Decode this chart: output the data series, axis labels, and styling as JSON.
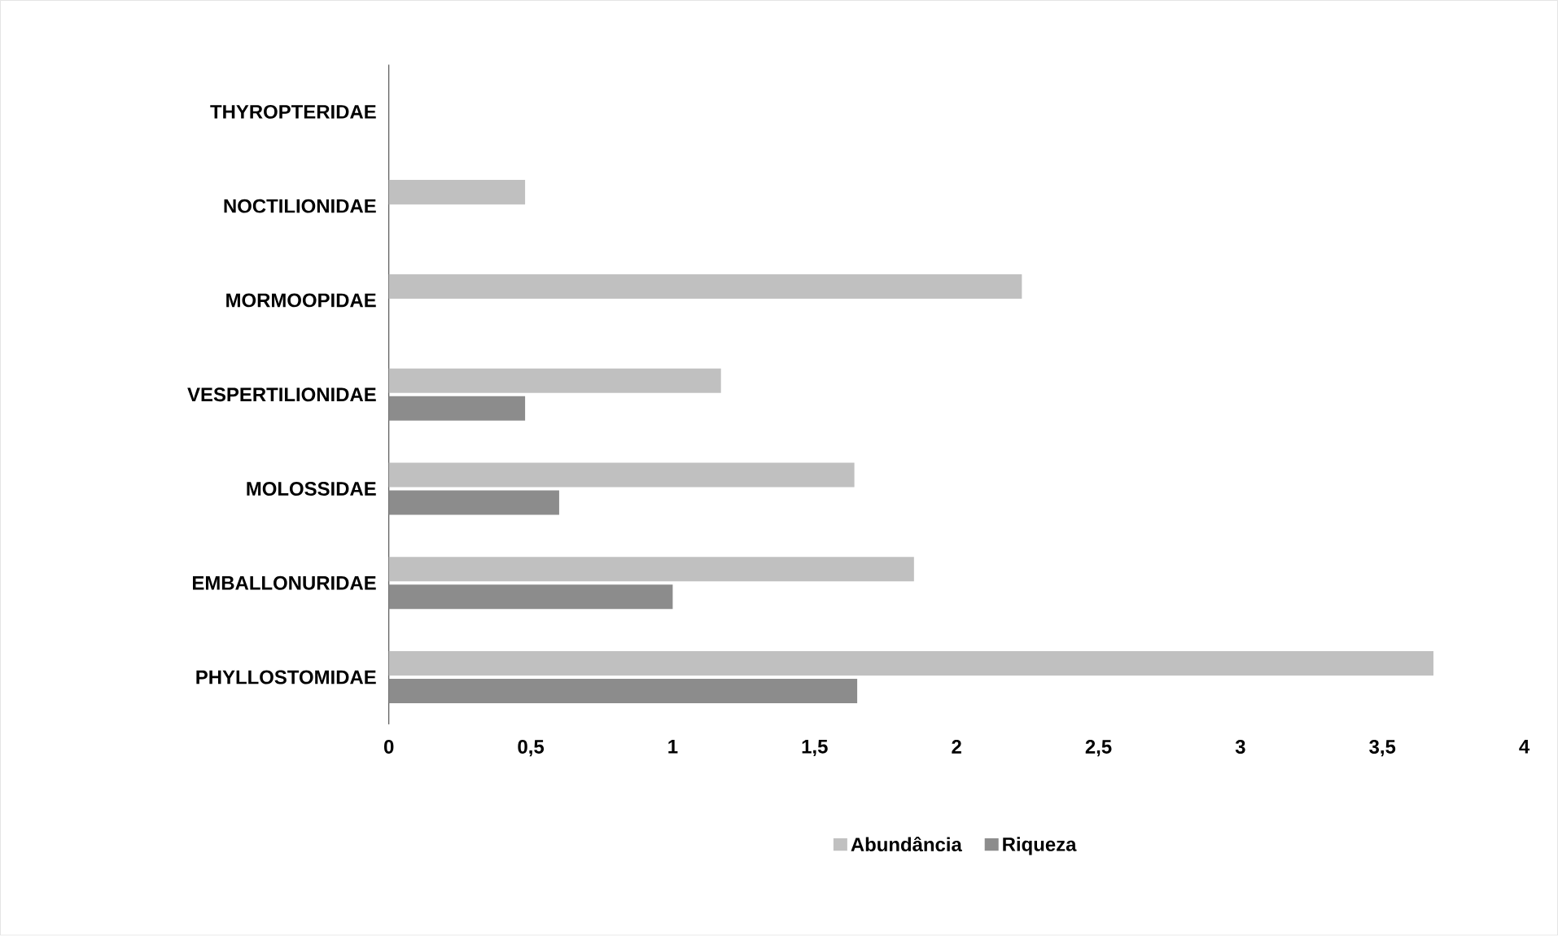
{
  "chart_data": {
    "type": "bar",
    "orientation": "horizontal",
    "categories": [
      "THYROPTERIDAE",
      "NOCTILIONIDAE",
      "MORMOOPIDAE",
      "VESPERTILIONIDAE",
      "MOLOSSIDAE",
      "EMBALLONURIDAE",
      "PHYLLOSTOMIDAE"
    ],
    "series": [
      {
        "name": "Abundância",
        "color": "#c0c0c0",
        "values": [
          null,
          0.48,
          2.23,
          1.17,
          1.64,
          1.85,
          3.68
        ]
      },
      {
        "name": "Riqueza",
        "color": "#8c8c8c",
        "values": [
          null,
          null,
          null,
          0.48,
          0.6,
          1.0,
          1.65
        ]
      }
    ],
    "xlim": [
      0,
      4
    ],
    "xticks": [
      0,
      {
        "value": 0.5,
        "label": "0,5"
      },
      1,
      {
        "value": 1.5,
        "label": "1,5"
      },
      2,
      {
        "value": 2.5,
        "label": "2,5"
      },
      3,
      {
        "value": 3.5,
        "label": "3,5"
      },
      4
    ],
    "grid": false,
    "legend": "bottom"
  }
}
